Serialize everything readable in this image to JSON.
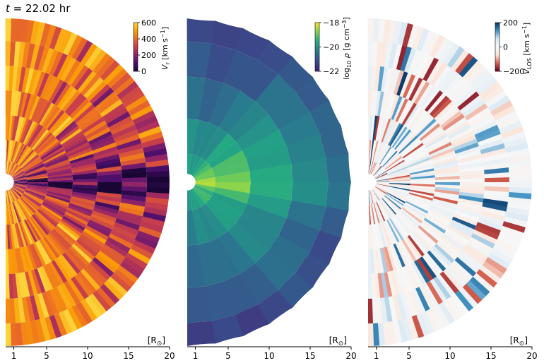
{
  "figure": {
    "title_t": "t",
    "title_value": " = 22.02 hr"
  },
  "chart_data": [
    {
      "type": "heatmap",
      "geometry": "half-disk (polar wedge), right half-plane",
      "xlabel": "[R",
      "xlabel_sub": "⊙",
      "xlabel_close": "]",
      "x_ticks": [
        1,
        5,
        10,
        15,
        20
      ],
      "xlim": [
        0,
        20
      ],
      "inner_radius": 1,
      "colormap": "inferno",
      "colors": [
        "#1a0635",
        "#4b0f6b",
        "#8a226a",
        "#c43c4e",
        "#ea6a28",
        "#fb9e07",
        "#fcd23b"
      ],
      "colorbar": {
        "label_var": "V",
        "label_sub": "r",
        "label_units": " [km s",
        "label_exp": "−1",
        "label_close": "]",
        "ticks": [
          0,
          200,
          400,
          600
        ],
        "range": [
          0,
          600
        ]
      }
    },
    {
      "type": "heatmap",
      "geometry": "half-disk (polar wedge), right half-plane",
      "xlabel": "[R",
      "xlabel_sub": "⊙",
      "xlabel_close": "]",
      "x_ticks": [
        1,
        5,
        10,
        15,
        20
      ],
      "xlim": [
        0,
        20
      ],
      "inner_radius": 1,
      "colormap": "viridis",
      "colors": [
        "#45206e",
        "#3a4b8a",
        "#2a788e",
        "#22a884",
        "#7ad151",
        "#fde725"
      ],
      "colorbar": {
        "label_var": "log",
        "label_sub": "10",
        "label_rho": " ρ",
        "label_units": " [g cm",
        "label_exp": "−3",
        "label_close": "]",
        "ticks": [
          -22,
          -20,
          -18
        ],
        "tick_labels": [
          "−22",
          "−20",
          "−18"
        ],
        "range": [
          -22,
          -18
        ]
      }
    },
    {
      "type": "heatmap",
      "geometry": "half-disk (polar wedge), right half-plane",
      "xlabel": "[R",
      "xlabel_sub": "⊙",
      "xlabel_close": "]",
      "x_ticks": [
        1,
        5,
        10,
        15,
        20
      ],
      "xlim": [
        0,
        20
      ],
      "inner_radius": 1,
      "colormap": "RdBu",
      "colors": [
        "#67001f",
        "#d6604d",
        "#fbe3d6",
        "#f7f7f7",
        "#d9e8f3",
        "#4393c3",
        "#053061"
      ],
      "colorbar": {
        "label_var": "V",
        "label_sub": "LOS",
        "label_units": " [km s",
        "label_exp": "−1",
        "label_close": "]",
        "ticks": [
          -200,
          0,
          200
        ],
        "tick_labels": [
          "−200",
          "0",
          "200"
        ],
        "range": [
          -200,
          200
        ]
      }
    }
  ]
}
